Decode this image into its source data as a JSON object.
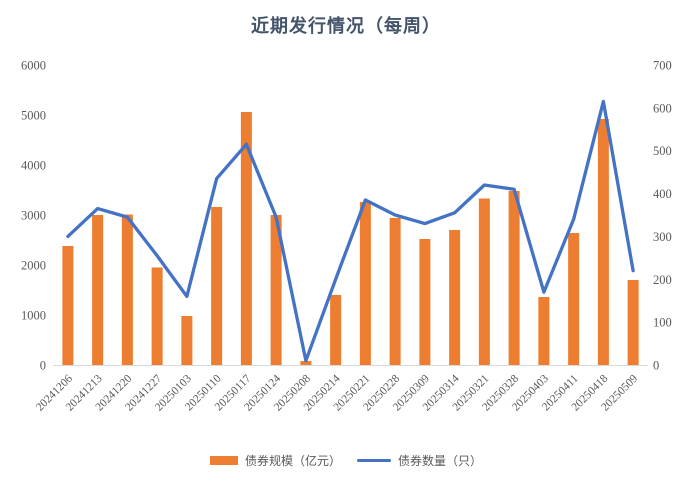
{
  "colors": {
    "bar": "#ED7D31",
    "line": "#4472C4",
    "title": "#44546A",
    "axis_text": "#595959",
    "axis_line": "#D9D9D9",
    "background": "#FFFFFF"
  },
  "chart_data": {
    "type": "bar",
    "subtype": "combo-bar-line",
    "title": "近期发行情况（每周）",
    "categories": [
      "20241206",
      "20241213",
      "20241220",
      "20241227",
      "20250103",
      "20250110",
      "20250117",
      "20250124",
      "20250208",
      "20250214",
      "20250221",
      "20250228",
      "20250309",
      "20250314",
      "20250321",
      "20250328",
      "20250403",
      "20250411",
      "20250418",
      "20250509"
    ],
    "series": [
      {
        "name": "债券规模（亿元）",
        "type": "bar",
        "axis": "left",
        "color": "#ED7D31",
        "values": [
          2380,
          3000,
          3010,
          1950,
          980,
          3160,
          5060,
          3000,
          80,
          1400,
          3260,
          2940,
          2520,
          2700,
          3330,
          3480,
          1360,
          2640,
          4920,
          1700
        ]
      },
      {
        "name": "债券数量（只）",
        "type": "line",
        "axis": "right",
        "color": "#4472C4",
        "values": [
          300,
          365,
          345,
          255,
          160,
          435,
          515,
          345,
          10,
          200,
          385,
          350,
          330,
          355,
          420,
          410,
          170,
          340,
          615,
          220
        ]
      }
    ],
    "left_axis": {
      "min": 0,
      "max": 6000,
      "step": 1000
    },
    "right_axis": {
      "min": 0,
      "max": 700,
      "step": 100
    },
    "grid": false,
    "legend_position": "bottom",
    "x_label_rotation": 45
  }
}
